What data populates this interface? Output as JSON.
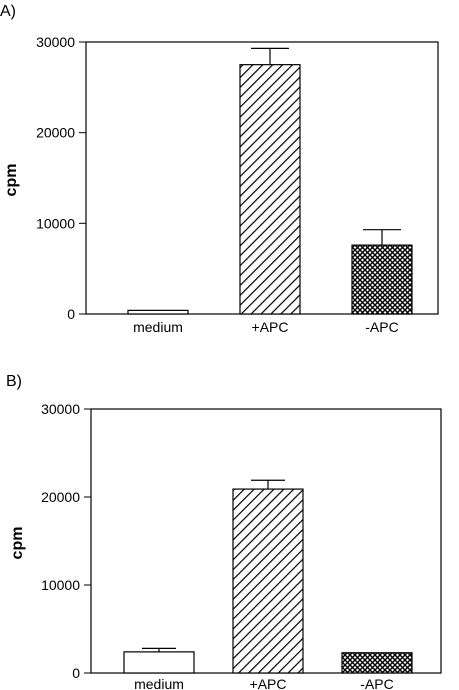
{
  "chart_data": [
    {
      "panel_label": "A)",
      "type": "bar",
      "categories": [
        "medium",
        "+APC",
        "-APC"
      ],
      "values": [
        400,
        27500,
        7600
      ],
      "errors": [
        0,
        1800,
        1700
      ],
      "patterns": [
        "none",
        "diagonal-hatch",
        "crosshatch"
      ],
      "ylabel": "cpm",
      "ylim": [
        0,
        30000
      ],
      "yticks": [
        "0",
        "10000",
        "20000",
        "30000"
      ],
      "grid": false,
      "legend": "none"
    },
    {
      "panel_label": "B)",
      "type": "bar",
      "categories": [
        "medium",
        "+APC",
        "-APC"
      ],
      "values": [
        2400,
        20900,
        2300
      ],
      "errors": [
        400,
        1000,
        0
      ],
      "patterns": [
        "none",
        "diagonal-hatch",
        "crosshatch"
      ],
      "ylabel": "cpm",
      "ylim": [
        0,
        30000
      ],
      "yticks": [
        "0",
        "10000",
        "20000",
        "30000"
      ],
      "grid": false,
      "legend": "none"
    }
  ]
}
